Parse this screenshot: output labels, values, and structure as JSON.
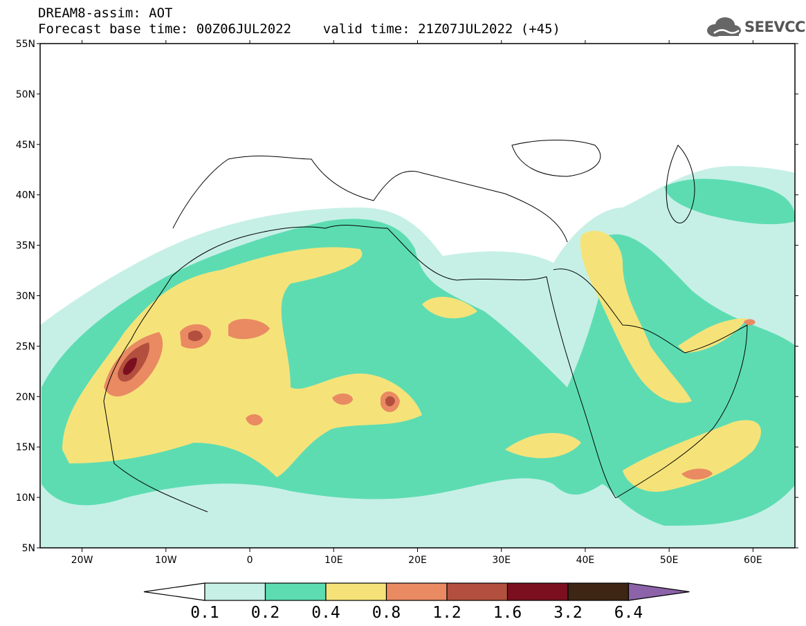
{
  "header": {
    "line1": "DREAM8-assim: AOT",
    "line2": "Forecast base time: 00Z06JUL2022    valid time: 21Z07JUL2022 (+45)"
  },
  "logo": {
    "text": "SEEVCCC",
    "icon": "cloud-icon"
  },
  "map": {
    "region": "North Africa, Mediterranean, Middle East",
    "lat_labels": [
      "55N",
      "50N",
      "45N",
      "40N",
      "35N",
      "30N",
      "25N",
      "20N",
      "15N",
      "10N",
      "5N"
    ],
    "lon_labels": [
      "20W",
      "10W",
      "0",
      "10E",
      "20E",
      "30E",
      "40E",
      "50E",
      "60E"
    ],
    "lon_range": [
      -25,
      65
    ],
    "lat_range": [
      5,
      55
    ]
  },
  "colorbar": {
    "levels": [
      "0.1",
      "0.2",
      "0.4",
      "0.8",
      "1.2",
      "1.6",
      "3.2",
      "6.4"
    ],
    "colors": {
      "below": "#ffffff",
      "c01_02": "#c6f0e6",
      "c02_04": "#5ddcb2",
      "c04_08": "#f5e37a",
      "c08_12": "#e98a62",
      "c12_16": "#b34f3e",
      "c16_32": "#7b0f1f",
      "c32_64": "#3d2613",
      "above": "#8c63a8"
    }
  }
}
